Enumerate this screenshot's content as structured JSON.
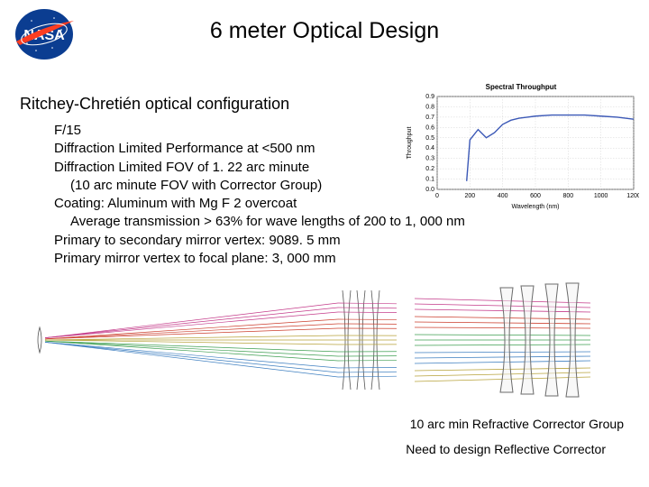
{
  "title": "6 meter Optical Design",
  "subtitle": "Ritchey-Chretién optical configuration",
  "bullets": {
    "l1": "F/15",
    "l2": "Diffraction Limited Performance at <500 nm",
    "l3": "Diffraction Limited FOV of 1. 22 arc minute",
    "l4": "(10 arc minute FOV with Corrector Group)",
    "l5": "Coating: Aluminum with Mg F 2 overcoat",
    "l6": "Average transmission > 63% for wave lengths of 200 to 1, 000 nm",
    "l7": "Primary to secondary mirror vertex: 9089. 5 mm",
    "l8": "Primary mirror vertex to focal plane: 3, 000 mm"
  },
  "chart": {
    "type": "line",
    "title": "Spectral Throughput",
    "title_fontsize": 8,
    "xlabel": "Wavelength (nm)",
    "ylabel": "Throughput",
    "label_fontsize": 7,
    "xlim": [
      0,
      1200
    ],
    "ylim": [
      0,
      0.9
    ],
    "xtick_step": 200,
    "ytick_step": 0.1,
    "background_color": "#ffffff",
    "grid_color": "#c8c8c8",
    "line_color": "#3b58b6",
    "line_width": 1.4,
    "x": [
      180,
      200,
      250,
      300,
      350,
      400,
      450,
      500,
      550,
      600,
      700,
      800,
      900,
      1000,
      1100,
      1200
    ],
    "y": [
      0.08,
      0.48,
      0.58,
      0.5,
      0.55,
      0.63,
      0.67,
      0.69,
      0.7,
      0.71,
      0.72,
      0.72,
      0.72,
      0.71,
      0.7,
      0.68
    ]
  },
  "logo": {
    "name": "NASA",
    "bg_color": "#0b3d91",
    "swoosh_color": "#fc3d21",
    "text_color": "#ffffff"
  },
  "ray_diagram": {
    "type": "ray-trace",
    "ray_colors": [
      "#c43b8a",
      "#cc3f2e",
      "#b7a23a",
      "#3f9f52",
      "#3e7fc0"
    ],
    "lens_color": "#555555",
    "background_color": "#ffffff"
  },
  "corrector": {
    "type": "lens-group",
    "ray_colors": [
      "#c43b8a",
      "#cc3f2e",
      "#3f9f52",
      "#3e7fc0",
      "#b7a23a"
    ],
    "lens_outline": "#6b6b6b",
    "lens_fill": "#f1f1f1"
  },
  "caption1": "10 arc min Refractive Corrector Group",
  "caption2": "Need to design Reflective Corrector"
}
